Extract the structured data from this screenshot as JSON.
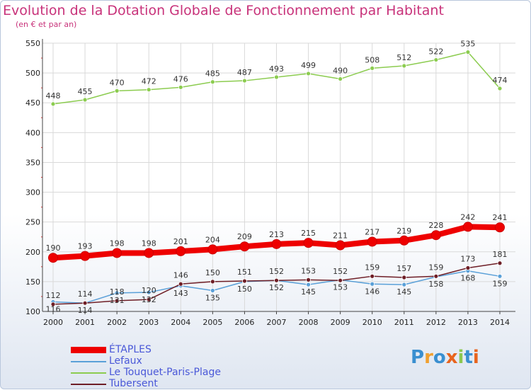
{
  "title": "Evolution de la Dotation Globale de Fonctionnement par Habitant",
  "subtitle": "(en € et par an)",
  "logo": {
    "text": "Proxiti",
    "letters": [
      "P",
      "r",
      "o",
      "x",
      "i",
      "t",
      "i"
    ]
  },
  "chart_data": {
    "type": "line",
    "title": "Evolution de la Dotation Globale de Fonctionnement par Habitant",
    "ylabel": "(en € et par an)",
    "xlabel": "",
    "ylim": [
      100,
      550
    ],
    "yticks": [
      "100",
      "150",
      "200",
      "250",
      "300",
      "350",
      "400",
      "450",
      "500",
      "550"
    ],
    "categories": [
      "2000",
      "2001",
      "2002",
      "2003",
      "2004",
      "2005",
      "2006",
      "2007",
      "2008",
      "2009",
      "2010",
      "2011",
      "2012",
      "2013",
      "2014"
    ],
    "series": [
      {
        "name": "ÉTAPLES",
        "color": "#ee0000",
        "values": [
          190,
          193,
          198,
          198,
          201,
          204,
          209,
          213,
          215,
          211,
          217,
          219,
          228,
          242,
          241
        ],
        "labels": [
          "190",
          "193",
          "198",
          "198",
          "201",
          "204",
          "209",
          "213",
          "215",
          "211",
          "217",
          "219",
          "228",
          "242",
          "241"
        ]
      },
      {
        "name": "Lefaux",
        "color": "#5aa0d8",
        "values": [
          116,
          114,
          131,
          132,
          143,
          135,
          150,
          152,
          145,
          153,
          146,
          145,
          158,
          168,
          159
        ],
        "labels": [
          "116",
          "114",
          "131",
          "132",
          "143",
          "135",
          "150",
          "152",
          "145",
          "153",
          "146",
          "145",
          "158",
          "168",
          "159"
        ]
      },
      {
        "name": "Le Touquet-Paris-Plage",
        "color": "#8ccc50",
        "values": [
          448,
          455,
          470,
          472,
          476,
          485,
          487,
          493,
          499,
          490,
          508,
          512,
          522,
          535,
          474
        ],
        "labels": [
          "448",
          "455",
          "470",
          "472",
          "476",
          "485",
          "487",
          "493",
          "499",
          "490",
          "508",
          "512",
          "522",
          "535",
          "474"
        ]
      },
      {
        "name": "Tubersent",
        "color": "#6e1e26",
        "values": [
          112,
          114,
          118,
          120,
          146,
          150,
          151,
          152,
          153,
          152,
          159,
          157,
          159,
          173,
          181
        ],
        "labels": [
          "112",
          "114",
          "118",
          "120",
          "146",
          "150",
          "151",
          "152",
          "153",
          "152",
          "159",
          "157",
          "159",
          "173",
          "181"
        ]
      }
    ],
    "legend_position": "bottom-left",
    "grid": true
  }
}
